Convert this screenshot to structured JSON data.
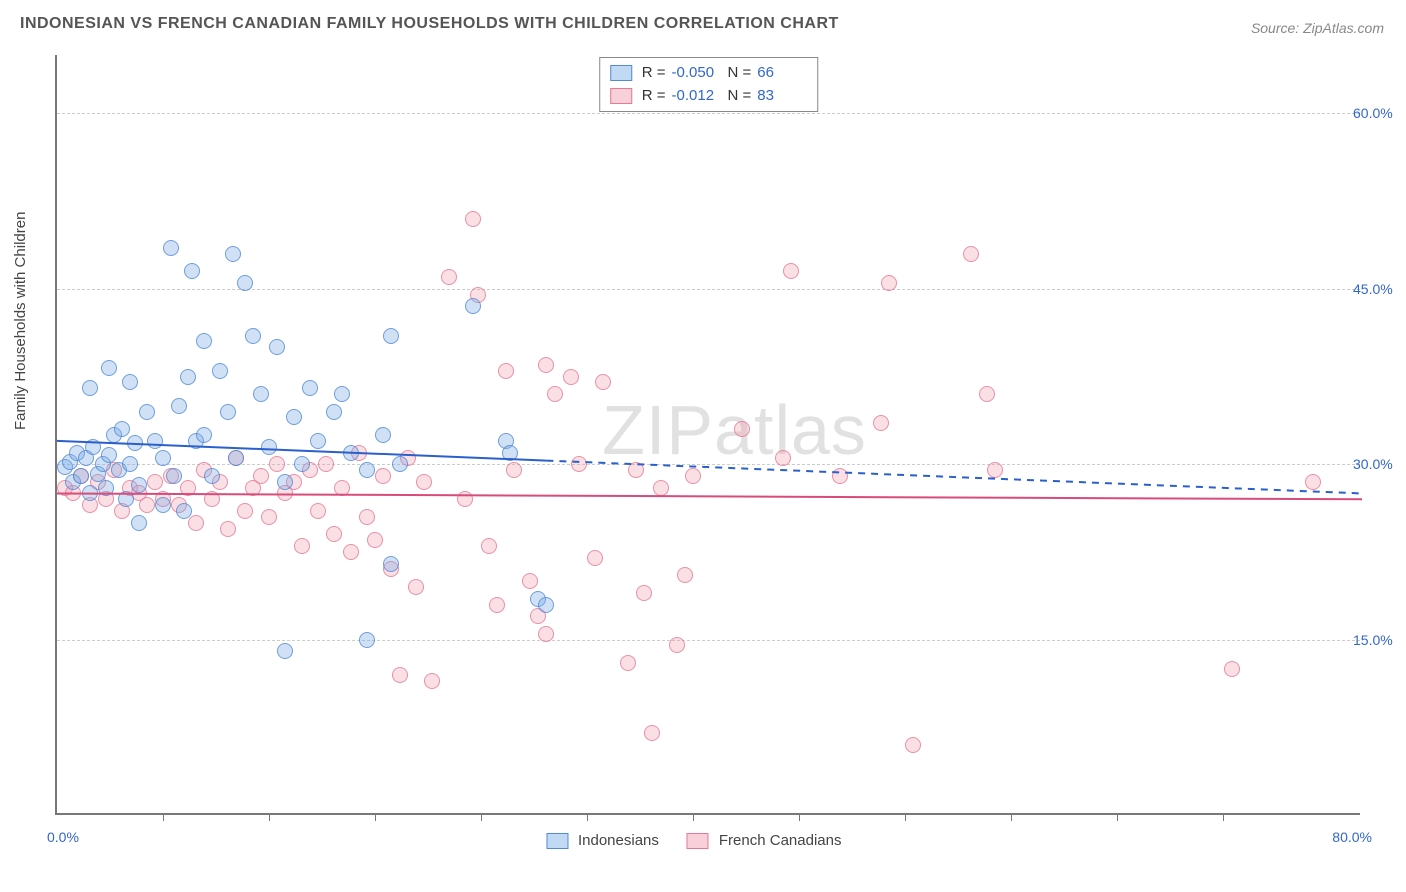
{
  "title": "INDONESIAN VS FRENCH CANADIAN FAMILY HOUSEHOLDS WITH CHILDREN CORRELATION CHART",
  "source": "Source: ZipAtlas.com",
  "ylabel": "Family Households with Children",
  "watermark": "ZIPatlas",
  "chart": {
    "type": "scatter",
    "xlim": [
      0,
      80
    ],
    "ylim": [
      0,
      65
    ],
    "xticks_minor": [
      6.5,
      13,
      19.5,
      26,
      32.5,
      39,
      45.5,
      52,
      58.5,
      65,
      71.5
    ],
    "xtick_label_min": "0.0%",
    "xtick_label_max": "80.0%",
    "ytick_positions": [
      15,
      30,
      45,
      60
    ],
    "ytick_labels": [
      "15.0%",
      "30.0%",
      "45.0%",
      "60.0%"
    ],
    "grid_color": "#cccccc",
    "axis_color": "#777777",
    "background_color": "#ffffff",
    "label_fontsize": 15,
    "tick_fontsize": 14,
    "tick_color": "#3366cc",
    "marker_radius": 8
  },
  "series": {
    "a": {
      "label": "Indonesians",
      "color_fill": "rgba(120,170,230,0.35)",
      "color_stroke": "rgba(70,130,210,0.7)",
      "R": "-0.050",
      "N": "66",
      "trend": {
        "y_at_x0": 32.0,
        "y_at_x80": 27.5,
        "solid_until_x": 30,
        "stroke": "#2a5fcc",
        "width": 2
      },
      "points": [
        [
          0.5,
          29.8
        ],
        [
          0.8,
          30.2
        ],
        [
          1.0,
          28.5
        ],
        [
          1.2,
          31.0
        ],
        [
          1.5,
          29.0
        ],
        [
          1.8,
          30.5
        ],
        [
          2.0,
          27.5
        ],
        [
          2.2,
          31.5
        ],
        [
          2.5,
          29.2
        ],
        [
          2.8,
          30.0
        ],
        [
          3.0,
          28.0
        ],
        [
          3.2,
          30.8
        ],
        [
          3.5,
          32.5
        ],
        [
          3.8,
          29.5
        ],
        [
          4.0,
          33.0
        ],
        [
          4.2,
          27.0
        ],
        [
          4.5,
          30.0
        ],
        [
          4.8,
          31.8
        ],
        [
          5.0,
          28.2
        ],
        [
          5.5,
          34.5
        ],
        [
          6.0,
          32.0
        ],
        [
          6.5,
          30.5
        ],
        [
          7.0,
          48.5
        ],
        [
          7.2,
          29.0
        ],
        [
          7.5,
          35.0
        ],
        [
          7.8,
          26.0
        ],
        [
          8.0,
          37.5
        ],
        [
          8.5,
          32.0
        ],
        [
          9.0,
          40.5
        ],
        [
          9.5,
          29.0
        ],
        [
          10.0,
          38.0
        ],
        [
          10.5,
          34.5
        ],
        [
          10.8,
          48.0
        ],
        [
          11.0,
          30.5
        ],
        [
          11.5,
          45.5
        ],
        [
          12.0,
          41.0
        ],
        [
          12.5,
          36.0
        ],
        [
          13.0,
          31.5
        ],
        [
          13.5,
          40.0
        ],
        [
          14.0,
          28.5
        ],
        [
          14.5,
          34.0
        ],
        [
          8.3,
          46.5
        ],
        [
          3.2,
          38.2
        ],
        [
          2.0,
          36.5
        ],
        [
          5.0,
          25.0
        ],
        [
          6.5,
          26.5
        ],
        [
          4.5,
          37.0
        ],
        [
          9.0,
          32.5
        ],
        [
          15.0,
          30.0
        ],
        [
          15.5,
          36.5
        ],
        [
          16.0,
          32.0
        ],
        [
          17.0,
          34.5
        ],
        [
          17.5,
          36.0
        ],
        [
          18.0,
          31.0
        ],
        [
          19.0,
          29.5
        ],
        [
          20.0,
          32.5
        ],
        [
          20.5,
          41.0
        ],
        [
          21.0,
          30.0
        ],
        [
          14.0,
          14.0
        ],
        [
          19.0,
          15.0
        ],
        [
          20.5,
          21.5
        ],
        [
          25.5,
          43.5
        ],
        [
          27.5,
          32.0
        ],
        [
          27.8,
          31.0
        ],
        [
          29.5,
          18.5
        ],
        [
          30.0,
          18.0
        ]
      ]
    },
    "b": {
      "label": "French Canadians",
      "color_fill": "rgba(240,150,170,0.3)",
      "color_stroke": "rgba(230,110,140,0.7)",
      "R": "-0.012",
      "N": "83",
      "trend": {
        "y_at_x0": 27.5,
        "y_at_x80": 27.0,
        "solid_until_x": 80,
        "stroke": "#d84b7a",
        "width": 2
      },
      "points": [
        [
          0.5,
          28.0
        ],
        [
          1.0,
          27.5
        ],
        [
          1.5,
          29.0
        ],
        [
          2.0,
          26.5
        ],
        [
          2.5,
          28.5
        ],
        [
          3.0,
          27.0
        ],
        [
          3.5,
          29.5
        ],
        [
          4.0,
          26.0
        ],
        [
          4.5,
          28.0
        ],
        [
          5.0,
          27.5
        ],
        [
          5.5,
          26.5
        ],
        [
          6.0,
          28.5
        ],
        [
          6.5,
          27.0
        ],
        [
          7.0,
          29.0
        ],
        [
          7.5,
          26.5
        ],
        [
          8.0,
          28.0
        ],
        [
          8.5,
          25.0
        ],
        [
          9.0,
          29.5
        ],
        [
          9.5,
          27.0
        ],
        [
          10.0,
          28.5
        ],
        [
          10.5,
          24.5
        ],
        [
          11.0,
          30.5
        ],
        [
          11.5,
          26.0
        ],
        [
          12.0,
          28.0
        ],
        [
          12.5,
          29.0
        ],
        [
          13.0,
          25.5
        ],
        [
          13.5,
          30.0
        ],
        [
          14.0,
          27.5
        ],
        [
          14.5,
          28.5
        ],
        [
          15.0,
          23.0
        ],
        [
          15.5,
          29.5
        ],
        [
          16.0,
          26.0
        ],
        [
          16.5,
          30.0
        ],
        [
          17.0,
          24.0
        ],
        [
          17.5,
          28.0
        ],
        [
          18.0,
          22.5
        ],
        [
          18.5,
          31.0
        ],
        [
          19.0,
          25.5
        ],
        [
          19.5,
          23.5
        ],
        [
          20.0,
          29.0
        ],
        [
          20.5,
          21.0
        ],
        [
          21.0,
          12.0
        ],
        [
          21.5,
          30.5
        ],
        [
          22.0,
          19.5
        ],
        [
          22.5,
          28.5
        ],
        [
          23.0,
          11.5
        ],
        [
          24.0,
          46.0
        ],
        [
          25.0,
          27.0
        ],
        [
          25.5,
          51.0
        ],
        [
          25.8,
          44.5
        ],
        [
          26.5,
          23.0
        ],
        [
          27.0,
          18.0
        ],
        [
          28.0,
          29.5
        ],
        [
          29.0,
          20.0
        ],
        [
          29.5,
          17.0
        ],
        [
          30.0,
          15.5
        ],
        [
          30.5,
          36.0
        ],
        [
          31.5,
          37.5
        ],
        [
          32.0,
          30.0
        ],
        [
          33.0,
          22.0
        ],
        [
          35.0,
          13.0
        ],
        [
          35.5,
          29.5
        ],
        [
          36.0,
          19.0
        ],
        [
          36.5,
          7.0
        ],
        [
          37.0,
          28.0
        ],
        [
          38.0,
          14.5
        ],
        [
          38.5,
          20.5
        ],
        [
          39.0,
          29.0
        ],
        [
          42.0,
          33.0
        ],
        [
          44.5,
          30.5
        ],
        [
          45.0,
          46.5
        ],
        [
          48.0,
          29.0
        ],
        [
          50.5,
          33.5
        ],
        [
          51.0,
          45.5
        ],
        [
          52.5,
          6.0
        ],
        [
          56.0,
          48.0
        ],
        [
          57.0,
          36.0
        ],
        [
          57.5,
          29.5
        ],
        [
          72.0,
          12.5
        ],
        [
          77.0,
          28.5
        ],
        [
          30.0,
          38.5
        ],
        [
          33.5,
          37.0
        ],
        [
          27.5,
          38.0
        ]
      ]
    }
  },
  "legend_bottom": {
    "a": "Indonesians",
    "b": "French Canadians"
  },
  "stats_labels": {
    "R": "R =",
    "N": "N ="
  }
}
